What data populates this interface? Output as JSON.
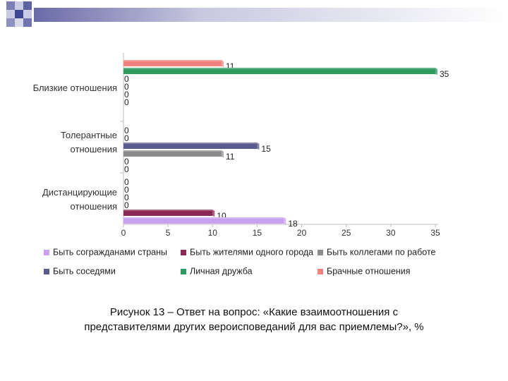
{
  "chart_data": {
    "type": "bar",
    "orientation": "horizontal",
    "categories": [
      "Близкие отношения",
      "Толерантные отношения",
      "Дистанцирующие отношения"
    ],
    "category_labels": [
      [
        "Близкие отношения"
      ],
      [
        "Толерантные",
        "отношения"
      ],
      [
        "Дистанцирующие",
        "отношения"
      ]
    ],
    "series": [
      {
        "name": "Брачные отношения",
        "color": "#f4817b",
        "values": [
          11,
          0,
          0
        ]
      },
      {
        "name": "Личная дружба",
        "color": "#2e9a5f",
        "values": [
          35,
          0,
          0
        ]
      },
      {
        "name": "Быть соседями",
        "color": "#5a5a8e",
        "values": [
          0,
          15,
          0
        ]
      },
      {
        "name": "Быть коллегами по работе",
        "color": "#8c8c8c",
        "values": [
          0,
          11,
          0
        ]
      },
      {
        "name": "Быть жителями одного города",
        "color": "#8a2a52",
        "values": [
          0,
          0,
          10
        ]
      },
      {
        "name": "Быть согражданами страны",
        "color": "#c7a0f0",
        "values": [
          0,
          0,
          18
        ]
      }
    ],
    "xlim": [
      0,
      35
    ],
    "xticks": [
      0,
      5,
      10,
      15,
      20,
      25,
      30,
      35
    ],
    "legend_order": [
      "Быть согражданами страны",
      "Быть жителями одного города",
      "Быть коллегами по работе",
      "Быть соседями",
      "Личная дружба",
      "Брачные отношения"
    ],
    "legend_position": "bottom"
  },
  "caption": {
    "line1": "Рисунок 13 – Ответ на вопрос: «Какие взаимоотношения с",
    "line2": "представителями других вероисповеданий для вас приемлемы?», %"
  }
}
